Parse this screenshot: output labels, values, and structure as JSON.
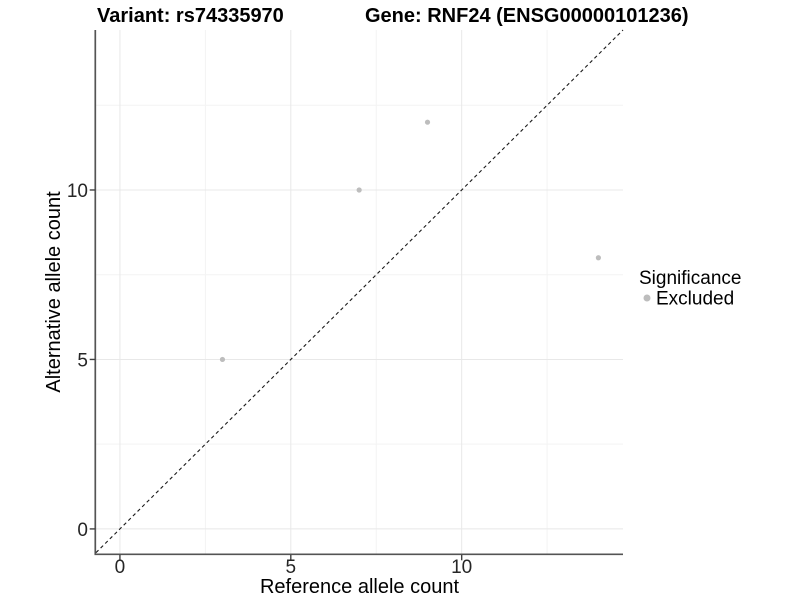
{
  "chart_data": {
    "type": "scatter",
    "title_left": "Variant: rs74335970",
    "title_right": "Gene: RNF24 (ENSG00000101236)",
    "xlabel": "Reference allele count",
    "ylabel": "Alternative allele count",
    "xlim": [
      -0.7,
      14.72
    ],
    "ylim": [
      -0.74,
      14.72
    ],
    "xticks": [
      0,
      5,
      10
    ],
    "yticks": [
      0,
      5,
      10
    ],
    "grid": {
      "x_major": [
        0,
        5,
        10
      ],
      "x_minor": [
        2.5,
        7.5,
        12.5
      ],
      "y_major": [
        0,
        5,
        10
      ],
      "y_minor": [
        2.5,
        7.5,
        12.5
      ]
    },
    "reference_line": {
      "type": "identity",
      "style": "dashed",
      "color": "#1a1a1a"
    },
    "series": [
      {
        "name": "Excluded",
        "color": "#bdbdbd",
        "points": [
          {
            "x": 3,
            "y": 5
          },
          {
            "x": 7,
            "y": 10
          },
          {
            "x": 9,
            "y": 12
          },
          {
            "x": 14,
            "y": 8
          }
        ]
      }
    ],
    "legend": {
      "title": "Significance",
      "position": "right",
      "items": [
        {
          "label": "Excluded",
          "color": "#bdbdbd"
        }
      ]
    }
  }
}
